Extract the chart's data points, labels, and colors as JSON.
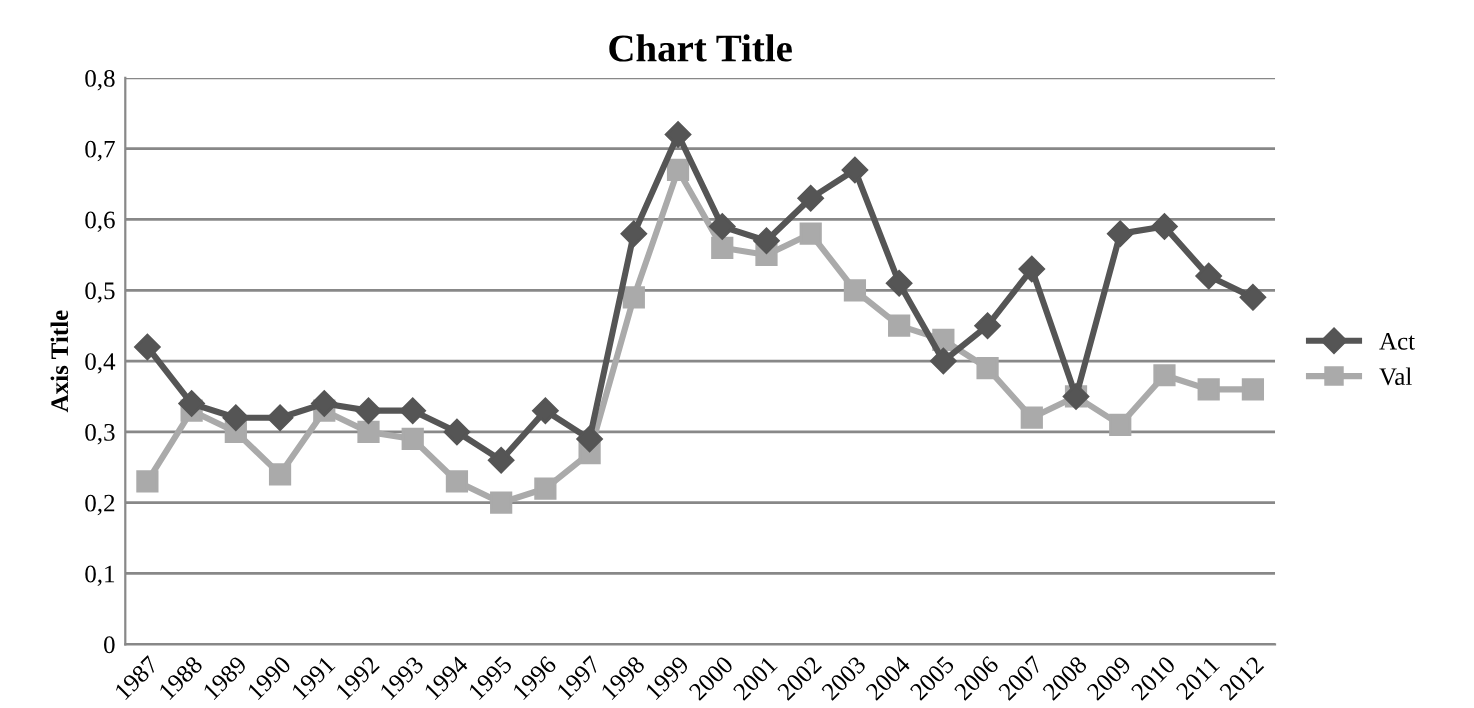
{
  "chart_data": {
    "type": "line",
    "title": "Chart Title",
    "ylabel": "Axis Title",
    "categories": [
      "1987",
      "1988",
      "1989",
      "1990",
      "1991",
      "1992",
      "1993",
      "1994",
      "1995",
      "1996",
      "1997",
      "1998",
      "1999",
      "2000",
      "2001",
      "2002",
      "2003",
      "2004",
      "2005",
      "2006",
      "2007",
      "2008",
      "2009",
      "2010",
      "2011",
      "2012"
    ],
    "series": [
      {
        "name": "Act",
        "color": "#555555",
        "marker": "diamond",
        "values": [
          0.42,
          0.34,
          0.32,
          0.32,
          0.34,
          0.33,
          0.33,
          0.3,
          0.26,
          0.33,
          0.29,
          0.58,
          0.72,
          0.59,
          0.57,
          0.63,
          0.67,
          0.51,
          0.4,
          0.45,
          0.53,
          0.35,
          0.58,
          0.59,
          0.52,
          0.49
        ]
      },
      {
        "name": "Val",
        "color": "#aaaaaa",
        "marker": "square",
        "values": [
          0.23,
          0.33,
          0.3,
          0.24,
          0.33,
          0.3,
          0.29,
          0.23,
          0.2,
          0.22,
          0.27,
          0.49,
          0.67,
          0.56,
          0.55,
          0.58,
          0.5,
          0.45,
          0.43,
          0.39,
          0.32,
          0.35,
          0.31,
          0.38,
          0.36,
          0.36
        ]
      }
    ],
    "ylim": [
      0,
      0.8
    ],
    "yticks": [
      {
        "value": 0,
        "label": "0"
      },
      {
        "value": 0.1,
        "label": "0,1"
      },
      {
        "value": 0.2,
        "label": "0,2"
      },
      {
        "value": 0.3,
        "label": "0,3"
      },
      {
        "value": 0.4,
        "label": "0,4"
      },
      {
        "value": 0.5,
        "label": "0,5"
      },
      {
        "value": 0.6,
        "label": "0,6"
      },
      {
        "value": 0.7,
        "label": "0,7"
      },
      {
        "value": 0.8,
        "label": "0,8"
      }
    ],
    "grid": "y",
    "legend": "right",
    "line_style": "solid"
  }
}
